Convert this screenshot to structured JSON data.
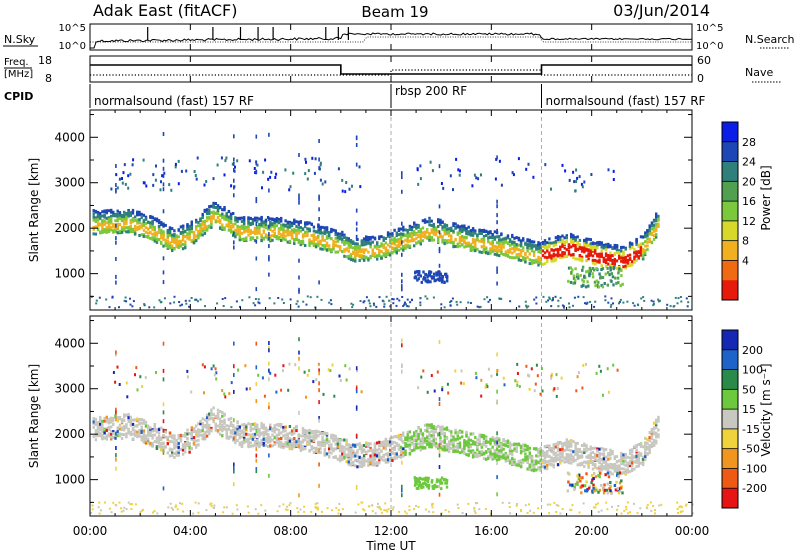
{
  "header": {
    "station": "Adak East (fitACF)",
    "beam": "Beam 19",
    "date": "03/Jun/2014"
  },
  "top_panels": {
    "nsky_label": "N.Sky",
    "nsky_ticks": [
      "10^5",
      "10^0"
    ],
    "nsearch_label": "N.Search",
    "freq_label": "Freq.",
    "freq_unit": "[MHz]",
    "freq_ticks": [
      "18",
      "8"
    ],
    "nave_ticks": [
      "60",
      "0"
    ],
    "nave_label": "Nave",
    "cpid_label": "CPID"
  },
  "cpid_segments": [
    {
      "label": "normalsound (fast) 157 RF",
      "start_h": 0,
      "end_h": 12
    },
    {
      "label": "rbsp 200 RF",
      "start_h": 12,
      "end_h": 18
    },
    {
      "label": "normalsound (fast) 157 RF",
      "start_h": 18,
      "end_h": 24
    }
  ],
  "chart_data": [
    {
      "type": "heatmap",
      "name": "power",
      "ylabel": "Slant Range [km]",
      "yticks": [
        1000,
        2000,
        3000,
        4000
      ],
      "ylim": [
        200,
        4600
      ],
      "xlim": [
        0,
        24
      ],
      "colorbar_label": "Power [dB]",
      "colorbar_ticks": [
        "28",
        "24",
        "20",
        "16",
        "12",
        "8",
        "4"
      ],
      "colorbar_colors": [
        "#0a1ee6",
        "#1e46b4",
        "#2f7f7a",
        "#50a050",
        "#7cc83c",
        "#d8d82a",
        "#f0b020",
        "#f06a14",
        "#e61a0a"
      ],
      "echo_band": [
        {
          "x": 0.5,
          "y": 2050
        },
        {
          "x": 1.5,
          "y": 2100
        },
        {
          "x": 2.5,
          "y": 1900
        },
        {
          "x": 3.3,
          "y": 1650
        },
        {
          "x": 4.0,
          "y": 1800
        },
        {
          "x": 4.9,
          "y": 2250
        },
        {
          "x": 6.0,
          "y": 1900
        },
        {
          "x": 7.5,
          "y": 1900
        },
        {
          "x": 9.0,
          "y": 1750
        },
        {
          "x": 9.9,
          "y": 1600
        },
        {
          "x": 10.5,
          "y": 1450
        },
        {
          "x": 11.5,
          "y": 1500
        },
        {
          "x": 13.5,
          "y": 1900
        },
        {
          "x": 15.0,
          "y": 1700
        },
        {
          "x": 16.5,
          "y": 1550
        },
        {
          "x": 17.8,
          "y": 1350
        },
        {
          "x": 19.0,
          "y": 1550
        },
        {
          "x": 20.0,
          "y": 1400
        },
        {
          "x": 21.2,
          "y": 1250
        },
        {
          "x": 22.0,
          "y": 1500
        },
        {
          "x": 22.6,
          "y": 2050
        }
      ]
    },
    {
      "type": "heatmap",
      "name": "velocity",
      "ylabel": "Slant Range [km]",
      "yticks": [
        1000,
        2000,
        3000,
        4000
      ],
      "ylim": [
        200,
        4600
      ],
      "xlim": [
        0,
        24
      ],
      "colorbar_label": "Velocity [m s⁻¹]",
      "colorbar_ticks": [
        "200",
        "100",
        "50",
        "15",
        "-15",
        "-50",
        "-100",
        "-200"
      ],
      "colorbar_colors": [
        "#1428b4",
        "#1e64c8",
        "#2a8a4a",
        "#6cc83c",
        "#c8c8c0",
        "#f0d23c",
        "#f0961e",
        "#ee5a14",
        "#e61414"
      ],
      "echo_band": [
        {
          "x": 0.5,
          "y": 2050
        },
        {
          "x": 1.5,
          "y": 2100
        },
        {
          "x": 2.5,
          "y": 1900
        },
        {
          "x": 3.3,
          "y": 1650
        },
        {
          "x": 4.0,
          "y": 1800
        },
        {
          "x": 4.9,
          "y": 2250
        },
        {
          "x": 6.0,
          "y": 1900
        },
        {
          "x": 7.5,
          "y": 1900
        },
        {
          "x": 9.0,
          "y": 1750
        },
        {
          "x": 9.9,
          "y": 1600
        },
        {
          "x": 10.5,
          "y": 1450
        },
        {
          "x": 11.5,
          "y": 1500
        },
        {
          "x": 13.5,
          "y": 1900
        },
        {
          "x": 15.0,
          "y": 1700
        },
        {
          "x": 16.5,
          "y": 1550
        },
        {
          "x": 17.8,
          "y": 1350
        },
        {
          "x": 19.0,
          "y": 1550
        },
        {
          "x": 20.0,
          "y": 1400
        },
        {
          "x": 21.2,
          "y": 1250
        },
        {
          "x": 22.0,
          "y": 1500
        },
        {
          "x": 22.6,
          "y": 2050
        }
      ]
    }
  ],
  "x_axis": {
    "ticks": [
      "00:00",
      "04:00",
      "08:00",
      "12:00",
      "16:00",
      "20:00",
      "00:00"
    ],
    "label": "Time UT"
  }
}
